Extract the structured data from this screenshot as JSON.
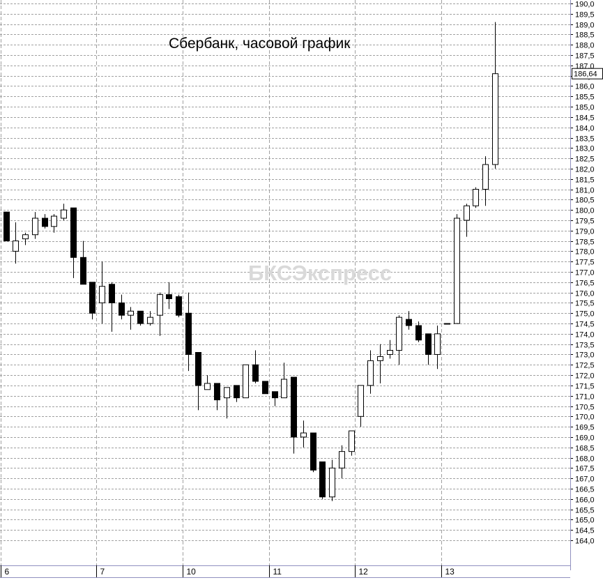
{
  "chart_data": {
    "type": "candlestick",
    "title": "Сбербанк, часовой график",
    "watermark": "БКСЭкспресс",
    "ylim": [
      164.0,
      190.0
    ],
    "y_tick_step": 0.5,
    "last_price": "186,64",
    "grid": true,
    "colors": {
      "up_body": "#ffffff",
      "down_body": "#000000",
      "line": "#000000",
      "grid": "#a0a0a0",
      "axis": "#8f8fbf",
      "watermark": "#d9d9d9"
    },
    "days": [
      {
        "label": "6",
        "start_index": 0
      },
      {
        "label": "7",
        "start_index": 10
      },
      {
        "label": "10",
        "start_index": 19
      },
      {
        "label": "11",
        "start_index": 28
      },
      {
        "label": "12",
        "start_index": 37
      },
      {
        "label": "13",
        "start_index": 46
      }
    ],
    "candles": [
      {
        "o": 179.9,
        "h": 179.9,
        "l": 178.5,
        "c": 178.5
      },
      {
        "o": 178.0,
        "h": 179.4,
        "l": 177.4,
        "c": 178.5
      },
      {
        "o": 178.6,
        "h": 178.9,
        "l": 178.3,
        "c": 178.8
      },
      {
        "o": 178.8,
        "h": 179.9,
        "l": 178.6,
        "c": 179.6
      },
      {
        "o": 179.6,
        "h": 179.8,
        "l": 179.1,
        "c": 179.2
      },
      {
        "o": 179.2,
        "h": 179.8,
        "l": 178.9,
        "c": 179.7
      },
      {
        "o": 179.6,
        "h": 180.3,
        "l": 179.5,
        "c": 180.0
      },
      {
        "o": 180.1,
        "h": 180.1,
        "l": 176.7,
        "c": 177.7
      },
      {
        "o": 177.7,
        "h": 178.5,
        "l": 176.4,
        "c": 176.4
      },
      {
        "o": 176.5,
        "h": 176.5,
        "l": 174.7,
        "c": 175.0
      },
      {
        "o": 175.5,
        "h": 177.5,
        "l": 174.5,
        "c": 176.3
      },
      {
        "o": 176.4,
        "h": 176.5,
        "l": 174.1,
        "c": 175.5
      },
      {
        "o": 175.5,
        "h": 175.9,
        "l": 174.7,
        "c": 174.9
      },
      {
        "o": 174.9,
        "h": 175.3,
        "l": 174.2,
        "c": 175.1
      },
      {
        "o": 175.1,
        "h": 175.1,
        "l": 174.4,
        "c": 174.5
      },
      {
        "o": 174.5,
        "h": 175.1,
        "l": 174.4,
        "c": 174.8
      },
      {
        "o": 174.9,
        "h": 176.0,
        "l": 173.9,
        "c": 175.9
      },
      {
        "o": 175.9,
        "h": 176.5,
        "l": 175.2,
        "c": 175.7
      },
      {
        "o": 175.8,
        "h": 175.9,
        "l": 174.8,
        "c": 174.9
      },
      {
        "o": 175.0,
        "h": 176.0,
        "l": 172.2,
        "c": 173.0
      },
      {
        "o": 173.1,
        "h": 173.1,
        "l": 170.3,
        "c": 171.5
      },
      {
        "o": 171.3,
        "h": 172.0,
        "l": 171.3,
        "c": 171.6
      },
      {
        "o": 171.6,
        "h": 171.6,
        "l": 170.3,
        "c": 170.8
      },
      {
        "o": 170.9,
        "h": 171.4,
        "l": 169.9,
        "c": 171.4
      },
      {
        "o": 171.5,
        "h": 171.5,
        "l": 170.7,
        "c": 170.9
      },
      {
        "o": 170.9,
        "h": 172.5,
        "l": 170.9,
        "c": 172.5
      },
      {
        "o": 172.5,
        "h": 173.2,
        "l": 171.6,
        "c": 171.7
      },
      {
        "o": 171.7,
        "h": 171.7,
        "l": 171.1,
        "c": 171.1
      },
      {
        "o": 171.2,
        "h": 171.2,
        "l": 170.5,
        "c": 170.9
      },
      {
        "o": 170.9,
        "h": 172.6,
        "l": 170.9,
        "c": 171.8
      },
      {
        "o": 171.9,
        "h": 171.9,
        "l": 168.2,
        "c": 169.0
      },
      {
        "o": 169.0,
        "h": 169.8,
        "l": 168.5,
        "c": 169.2
      },
      {
        "o": 169.2,
        "h": 169.2,
        "l": 167.3,
        "c": 167.4
      },
      {
        "o": 167.8,
        "h": 167.8,
        "l": 166.0,
        "c": 166.1
      },
      {
        "o": 166.1,
        "h": 167.9,
        "l": 165.9,
        "c": 167.5
      },
      {
        "o": 167.5,
        "h": 168.6,
        "l": 167.0,
        "c": 168.3
      },
      {
        "o": 168.3,
        "h": 169.3,
        "l": 168.1,
        "c": 169.3
      },
      {
        "o": 170.0,
        "h": 171.5,
        "l": 169.5,
        "c": 171.5
      },
      {
        "o": 171.5,
        "h": 173.2,
        "l": 171.1,
        "c": 172.7
      },
      {
        "o": 172.7,
        "h": 173.5,
        "l": 171.6,
        "c": 172.9
      },
      {
        "o": 173.0,
        "h": 173.7,
        "l": 172.8,
        "c": 173.2
      },
      {
        "o": 173.2,
        "h": 174.9,
        "l": 172.5,
        "c": 174.8
      },
      {
        "o": 174.7,
        "h": 175.1,
        "l": 174.2,
        "c": 174.4
      },
      {
        "o": 174.4,
        "h": 174.6,
        "l": 173.6,
        "c": 173.7
      },
      {
        "o": 174.0,
        "h": 174.0,
        "l": 172.5,
        "c": 173.0
      },
      {
        "o": 173.0,
        "h": 174.4,
        "l": 172.3,
        "c": 174.0
      },
      {
        "o": 174.5,
        "h": 174.5,
        "l": 174.5,
        "c": 174.5
      },
      {
        "o": 174.5,
        "h": 179.8,
        "l": 174.5,
        "c": 179.6
      },
      {
        "o": 179.5,
        "h": 180.3,
        "l": 178.7,
        "c": 180.2
      },
      {
        "o": 180.2,
        "h": 181.1,
        "l": 180.1,
        "c": 181.0
      },
      {
        "o": 181.0,
        "h": 182.6,
        "l": 180.2,
        "c": 182.2
      },
      {
        "o": 182.2,
        "h": 189.1,
        "l": 182.0,
        "c": 186.6
      }
    ]
  }
}
